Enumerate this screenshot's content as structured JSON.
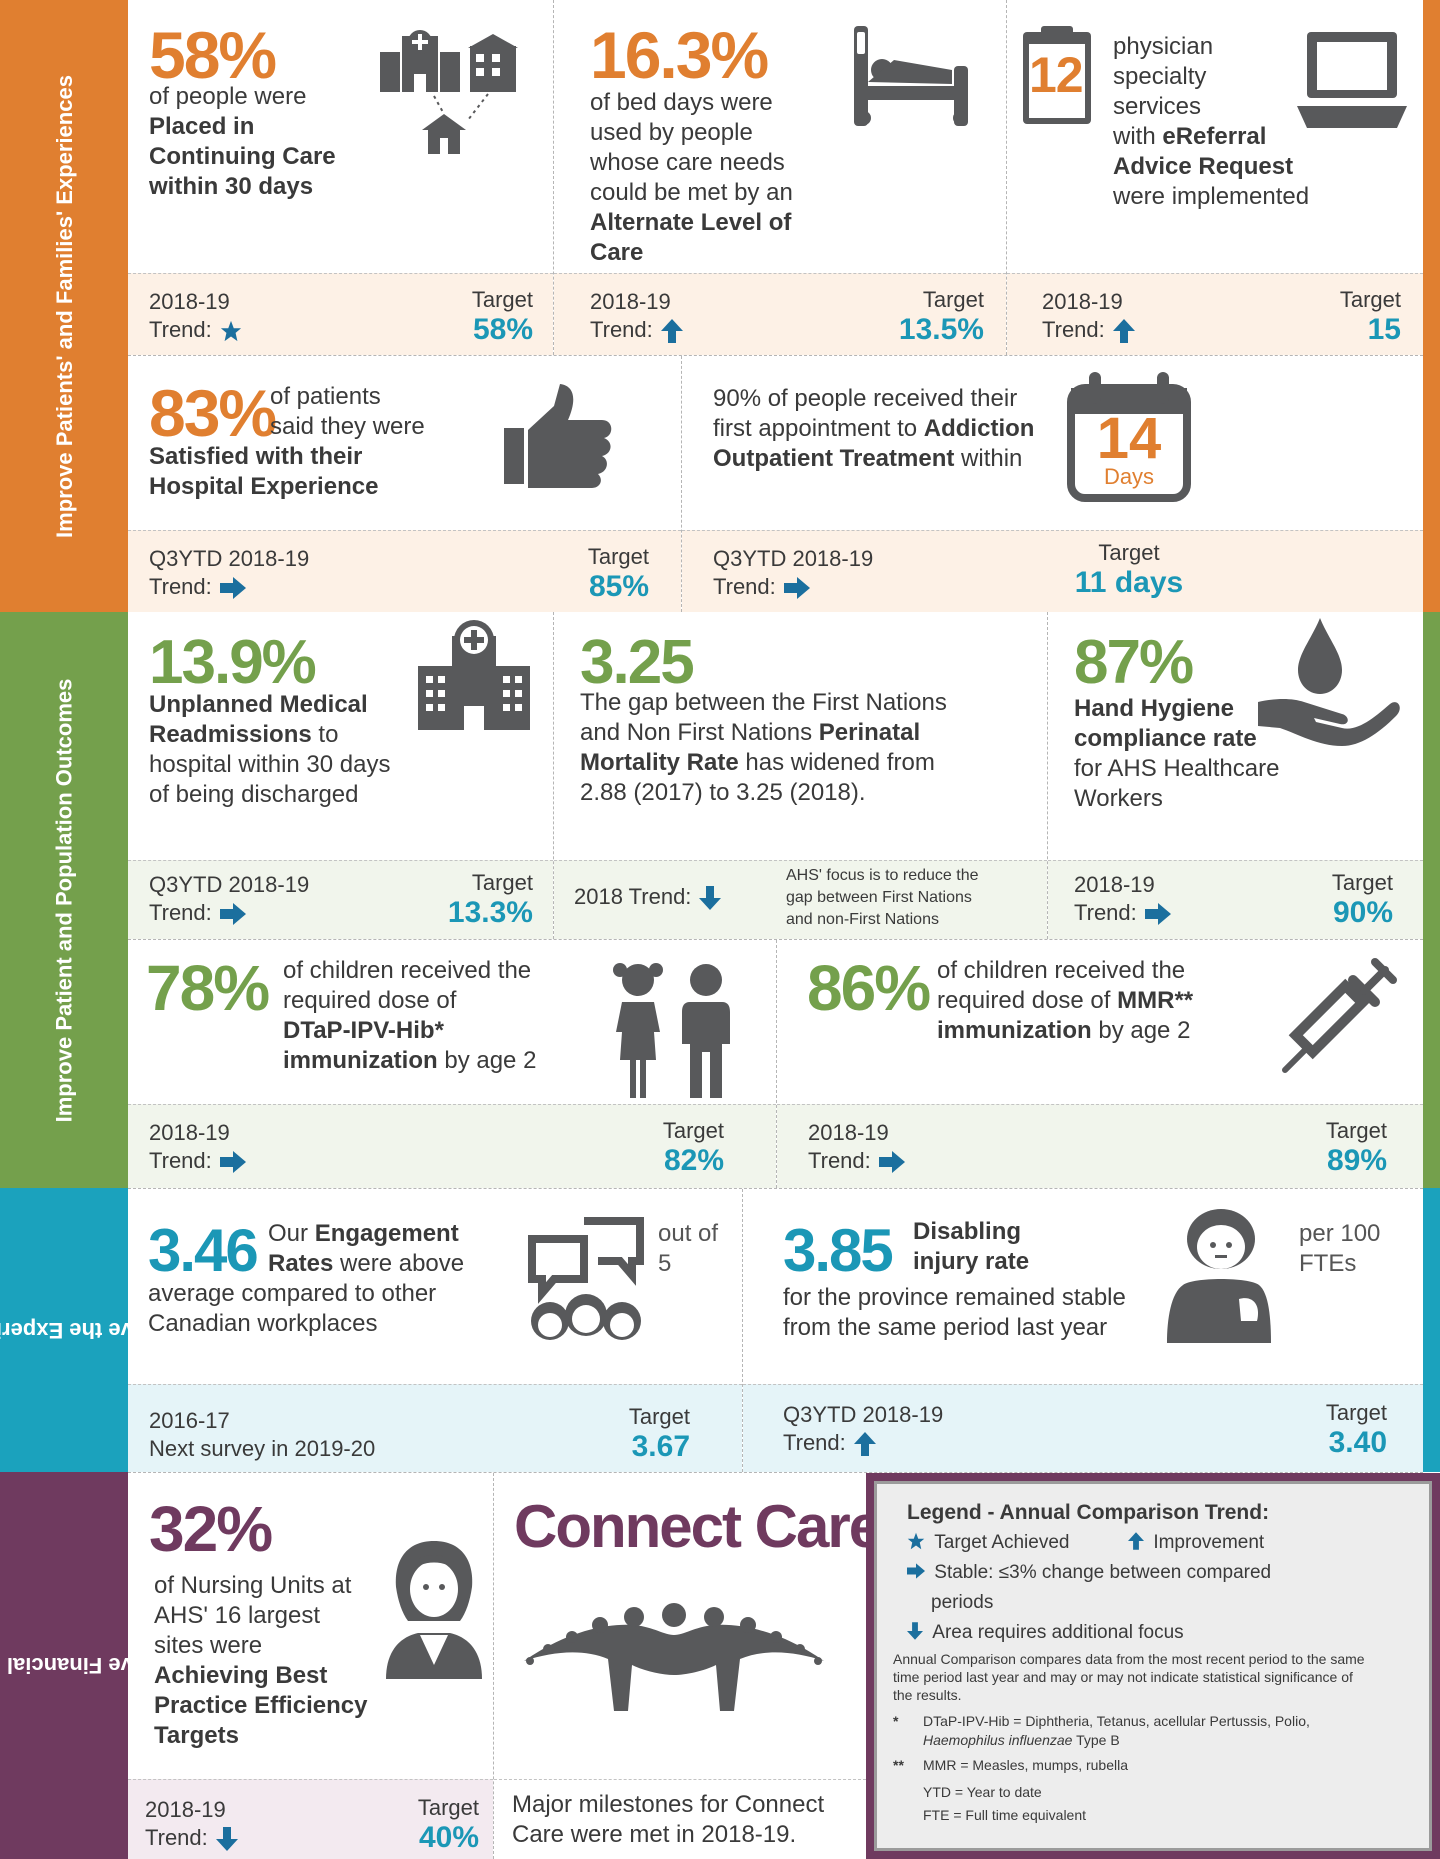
{
  "colors": {
    "orange": "#e07f30",
    "green": "#74a04c",
    "teal": "#1b97b6",
    "purple": "#6f3a5f",
    "icon": "#58595b"
  },
  "sections": [
    {
      "label": "Improve Patients' and Families' Experiences"
    },
    {
      "label": "Improve Patient and Population Outcomes"
    },
    {
      "label": "Improve the Experience and Safety of Our People"
    },
    {
      "label": "Improve Financial Health and Value for Money"
    }
  ],
  "cards": {
    "continuing_care": {
      "value": "58%",
      "t1": "of people were",
      "t2": "Placed in",
      "t3": "Continuing Care",
      "t4": "within 30 days",
      "period": "2018-19",
      "trend_label": "Trend:",
      "trend": "target-achieved",
      "target_label": "Target",
      "target": "58%",
      "icon": "hospital-network-icon"
    },
    "alc": {
      "value": "16.3%",
      "t1": "of bed days were",
      "t2": "used by people",
      "t3": "whose care needs",
      "t4": "could be met by an",
      "t5": "Alternate Level of",
      "t6": "Care",
      "period": "2018-19",
      "trend_label": "Trend:",
      "trend": "improvement",
      "target_label": "Target",
      "target": "13.5%",
      "icon": "hospital-bed-icon"
    },
    "ereferral": {
      "number": "12",
      "t1": "physician",
      "t2": "specialty",
      "t3": "services",
      "t4a": "with ",
      "t4b": "eReferral",
      "t5": "Advice Request",
      "t6": "were implemented",
      "period": "2018-19",
      "trend_label": "Trend:",
      "trend": "improvement",
      "target_label": "Target",
      "target": "15",
      "icon": "laptop-icon"
    },
    "satisfied": {
      "value": "83%",
      "t1": "of patients",
      "t2": "said they were",
      "t3": "Satisfied with their",
      "t4": "Hospital Experience",
      "period": "Q3YTD 2018-19",
      "trend_label": "Trend:",
      "trend": "stable",
      "target_label": "Target",
      "target": "85%",
      "icon": "thumbs-up-icon"
    },
    "addiction": {
      "t1": "90% of people received their",
      "t2a": "first appointment to ",
      "t2b": "Addiction",
      "t3a": "Outpatient Treatment",
      "t3b": " within",
      "cal_num": "14",
      "cal_unit": "Days",
      "period": "Q3YTD 2018-19",
      "trend_label": "Trend:",
      "trend": "stable",
      "target_label": "Target",
      "target": "11 days",
      "icon": "calendar-icon"
    },
    "readmissions": {
      "value": "13.9%",
      "t1": "Unplanned Medical",
      "t2a": "Readmissions",
      "t2b": " to",
      "t3": "hospital within 30 days",
      "t4": "of being discharged",
      "period": "Q3YTD 2018-19",
      "trend_label": "Trend:",
      "trend": "stable",
      "target_label": "Target",
      "target": "13.3%",
      "icon": "hospital-icon"
    },
    "perinatal": {
      "value": "3.25",
      "t1": "The gap between the First Nations",
      "t2a": "and Non First Nations ",
      "t2b": "Perinatal",
      "t3a": "Mortality Rate",
      "t3b": " has widened from",
      "t4": "2.88 (2017) to 3.25 (2018).",
      "period": "2018 Trend:",
      "trend": "additional-focus",
      "note1": "AHS' focus is to reduce the",
      "note2": "gap between First Nations",
      "note3": "and non-First Nations"
    },
    "hygiene": {
      "value": "87%",
      "t1": "Hand Hygiene",
      "t2": "compliance rate",
      "t3": "for AHS Healthcare",
      "t4": "Workers",
      "period": "2018-19",
      "trend_label": "Trend:",
      "trend": "stable",
      "target_label": "Target",
      "target": "90%",
      "icon": "hand-drop-icon"
    },
    "dtap": {
      "value": "78%",
      "t1": "of children received the",
      "t2": "required dose of",
      "t3": "DTaP-IPV-Hib*",
      "t4a": "immunization",
      "t4b": " by age 2",
      "period": "2018-19",
      "trend_label": "Trend:",
      "trend": "stable",
      "target_label": "Target",
      "target": "82%",
      "icon": "children-icon"
    },
    "mmr": {
      "value": "86%",
      "t1": "of children received the",
      "t2a": "required dose of ",
      "t2b": "MMR**",
      "t3a": "immunization",
      "t3b": " by age 2",
      "period": "2018-19",
      "trend_label": "Trend:",
      "trend": "stable",
      "target_label": "Target",
      "target": "89%",
      "icon": "syringe-icon"
    },
    "engagement": {
      "value": "3.46",
      "t1a": "Our ",
      "t1b": "Engagement",
      "t2a": "Rates",
      "t2b": " were above",
      "t3": "average compared to other",
      "t4": "Canadian workplaces",
      "out1": "out of",
      "out2": "5",
      "period": "2016-17",
      "period2": "Next survey in 2019-20",
      "target_label": "Target",
      "target": "3.67",
      "icon": "people-chat-icon"
    },
    "injury": {
      "value": "3.85",
      "t1": "Disabling",
      "t2": "injury rate",
      "t3": "for the province remained stable",
      "t4": "from the same period last year",
      "per1": "per 100",
      "per2": "FTEs",
      "period": "Q3YTD 2018-19",
      "trend_label": "Trend:",
      "trend": "improvement",
      "target_label": "Target",
      "target": "3.40",
      "icon": "injured-worker-icon"
    },
    "nursing": {
      "value": "32%",
      "t1": "of Nursing Units at",
      "t2": "AHS' 16 largest",
      "t3": "sites were",
      "t4": "Achieving Best",
      "t5": "Practice Efficiency",
      "t6": "Targets",
      "period": "2018-19",
      "trend_label": "Trend:",
      "trend": "additional-focus",
      "target_label": "Target",
      "target": "40%",
      "icon": "nurse-icon"
    },
    "connect": {
      "title": "Connect Care",
      "t1": "Major milestones for Connect",
      "t2": "Care were met in 2018-19.",
      "icon": "connect-care-logo"
    }
  },
  "legend": {
    "title": "Legend - Annual Comparison Trend:",
    "target": "Target Achieved",
    "improvement": "Improvement",
    "stable": "Stable: ≤3% change between compared",
    "stable2": "periods",
    "focus": "Area requires additional focus",
    "note1": "Annual Comparison compares data from the most recent period to the same",
    "note2": "time period last year and may or may not indicate statistical significance of",
    "note3": "the results.",
    "star1": "*",
    "fn1a": "DTaP-IPV-Hib = Diphtheria, Tetanus, acellular Pertussis, Polio,",
    "fn1b": "Haemophilus influenzae",
    "fn1c": " Type B",
    "star2": "**",
    "fn2": "MMR = Measles, mumps, rubella",
    "fn3": "YTD = Year to date",
    "fn4": "FTE = Full time equivalent"
  }
}
